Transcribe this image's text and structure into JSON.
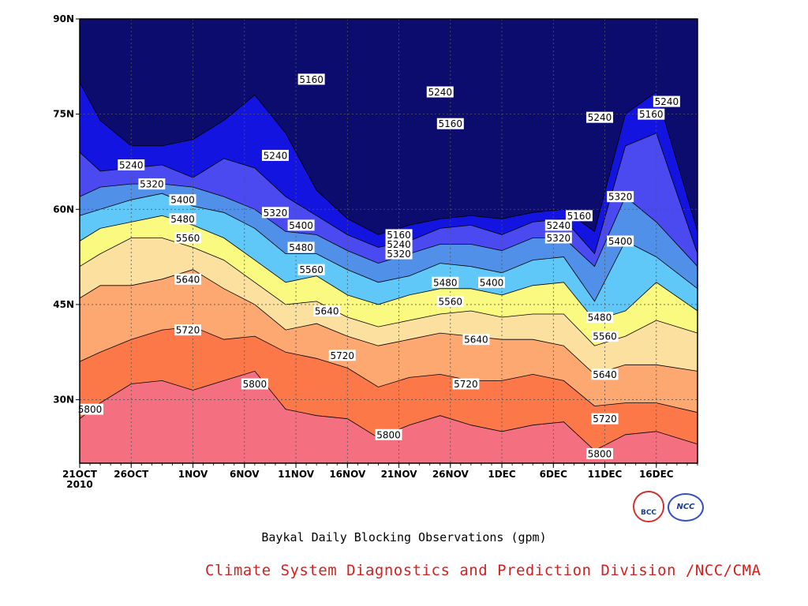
{
  "chart_data": {
    "type": "area",
    "title": "Baykal Daily Blocking Observations (gpm)",
    "subtitle": "Climate System Diagnostics and Prediction Division /NCC/CMA",
    "xlabel": "",
    "ylabel": "",
    "x_ticks": [
      "21OCT\n2010",
      "26OCT",
      "1NOV",
      "6NOV",
      "11NOV",
      "16NOV",
      "21NOV",
      "26NOV",
      "1DEC",
      "6DEC",
      "11DEC",
      "16DEC"
    ],
    "x_days": [
      0,
      5,
      11,
      16,
      21,
      26,
      31,
      36,
      41,
      46,
      51,
      56
    ],
    "x_range": [
      0,
      60
    ],
    "y_ticks": [
      "90N",
      "75N",
      "60N",
      "45N",
      "30N"
    ],
    "y_tick_values": [
      90,
      75,
      60,
      45,
      30
    ],
    "y_range": [
      20,
      90
    ],
    "grid": true,
    "contour_levels": [
      5160,
      5240,
      5320,
      5400,
      5480,
      5560,
      5640,
      5720,
      5800
    ],
    "colors": {
      "below_5160": "#0c0c6e",
      "5160_5240": "#1414e0",
      "5240_5320": "#4a4af0",
      "5320_5400": "#5090e8",
      "5400_5480": "#60c8f8",
      "5480_5560": "#fafa80",
      "5560_5640": "#fce0a0",
      "5640_5720": "#fca870",
      "5720_5800": "#fc7848",
      "above_5800": "#f47080"
    },
    "x_days_sample": [
      0,
      2,
      5,
      8,
      11,
      14,
      17,
      20,
      23,
      26,
      29,
      32,
      35,
      38,
      41,
      44,
      47,
      50,
      53,
      56,
      60
    ],
    "isolines": [
      {
        "level": 5800,
        "lat": [
          27.0,
          29.5,
          32.5,
          33.0,
          31.5,
          33.0,
          34.5,
          28.5,
          27.5,
          27.0,
          24.0,
          26.0,
          27.5,
          26.0,
          25.0,
          26.0,
          26.5,
          22.0,
          24.5,
          25.0,
          23.0
        ]
      },
      {
        "level": 5720,
        "lat": [
          36.0,
          37.5,
          39.5,
          41.0,
          41.5,
          39.5,
          40.0,
          37.5,
          36.5,
          35.0,
          32.0,
          33.5,
          34.0,
          33.0,
          33.0,
          34.0,
          33.0,
          29.0,
          29.5,
          29.5,
          28.0
        ]
      },
      {
        "level": 5640,
        "lat": [
          46.0,
          48.0,
          48.0,
          49.0,
          50.5,
          47.5,
          45.0,
          41.0,
          42.0,
          40.0,
          38.5,
          39.5,
          40.5,
          40.0,
          39.5,
          39.5,
          38.5,
          34.0,
          35.5,
          35.5,
          34.5
        ]
      },
      {
        "level": 5560,
        "lat": [
          51.0,
          53.0,
          55.5,
          55.5,
          54.0,
          52.0,
          48.5,
          45.0,
          45.5,
          43.0,
          41.5,
          42.5,
          43.5,
          44.0,
          43.0,
          43.5,
          43.5,
          38.5,
          40.0,
          42.5,
          40.5
        ]
      },
      {
        "level": 5480,
        "lat": [
          55.0,
          57.0,
          58.0,
          59.0,
          57.5,
          55.5,
          52.0,
          48.5,
          49.5,
          46.5,
          45.0,
          46.5,
          47.5,
          47.5,
          46.5,
          48.0,
          48.5,
          42.5,
          44.0,
          48.5,
          44.0
        ]
      },
      {
        "level": 5400,
        "lat": [
          59.0,
          60.0,
          61.5,
          62.5,
          60.5,
          59.5,
          57.0,
          53.0,
          53.0,
          50.5,
          48.5,
          49.5,
          51.5,
          51.0,
          50.0,
          52.0,
          52.5,
          45.5,
          55.0,
          52.5,
          47.5
        ]
      },
      {
        "level": 5320,
        "lat": [
          62.0,
          63.5,
          64.0,
          64.0,
          63.5,
          62.0,
          60.0,
          56.5,
          56.0,
          53.5,
          51.5,
          53.0,
          54.5,
          54.5,
          53.5,
          55.5,
          55.5,
          51.0,
          62.0,
          58.0,
          51.0
        ]
      },
      {
        "level": 5240,
        "lat": [
          69.0,
          66.0,
          66.5,
          67.0,
          65.0,
          68.0,
          66.5,
          62.0,
          59.0,
          56.0,
          54.0,
          55.0,
          57.0,
          57.5,
          56.0,
          58.0,
          58.5,
          53.0,
          70.0,
          72.0,
          53.0
        ]
      },
      {
        "level": 5160,
        "lat": [
          80.0,
          74.0,
          70.0,
          70.0,
          71.0,
          74.0,
          78.0,
          72.0,
          63.0,
          58.5,
          56.0,
          57.5,
          58.5,
          59.0,
          58.5,
          59.5,
          60.0,
          56.5,
          75.0,
          78.5,
          56.5
        ]
      }
    ],
    "labels": [
      {
        "text": "5800",
        "day": 1.0,
        "lat": 28.5
      },
      {
        "text": "5800",
        "day": 17.0,
        "lat": 32.5
      },
      {
        "text": "5800",
        "day": 30.0,
        "lat": 24.5
      },
      {
        "text": "5800",
        "day": 50.5,
        "lat": 21.5
      },
      {
        "text": "5720",
        "day": 10.5,
        "lat": 41.0
      },
      {
        "text": "5720",
        "day": 25.5,
        "lat": 37.0
      },
      {
        "text": "5720",
        "day": 37.5,
        "lat": 32.5
      },
      {
        "text": "5720",
        "day": 51.0,
        "lat": 27.0
      },
      {
        "text": "5640",
        "day": 10.5,
        "lat": 49.0
      },
      {
        "text": "5640",
        "day": 24.0,
        "lat": 44.0
      },
      {
        "text": "5640",
        "day": 38.5,
        "lat": 39.5
      },
      {
        "text": "5640",
        "day": 51.0,
        "lat": 34.0
      },
      {
        "text": "5560",
        "day": 10.5,
        "lat": 55.5
      },
      {
        "text": "5560",
        "day": 22.5,
        "lat": 50.5
      },
      {
        "text": "5560",
        "day": 36.0,
        "lat": 45.5
      },
      {
        "text": "5560",
        "day": 51.0,
        "lat": 40.0
      },
      {
        "text": "5480",
        "day": 10.0,
        "lat": 58.5
      },
      {
        "text": "5480",
        "day": 21.5,
        "lat": 54.0
      },
      {
        "text": "5480",
        "day": 35.5,
        "lat": 48.5
      },
      {
        "text": "5480",
        "day": 50.5,
        "lat": 43.0
      },
      {
        "text": "5400",
        "day": 10.0,
        "lat": 61.5
      },
      {
        "text": "5400",
        "day": 21.5,
        "lat": 57.5
      },
      {
        "text": "5400",
        "day": 40.0,
        "lat": 48.5
      },
      {
        "text": "5400",
        "day": 52.5,
        "lat": 55.0
      },
      {
        "text": "5320",
        "day": 7.0,
        "lat": 64.0
      },
      {
        "text": "5320",
        "day": 19.0,
        "lat": 59.5
      },
      {
        "text": "5320",
        "day": 31.0,
        "lat": 53.0
      },
      {
        "text": "5320",
        "day": 46.5,
        "lat": 55.5
      },
      {
        "text": "5320",
        "day": 52.5,
        "lat": 62.0
      },
      {
        "text": "5240",
        "day": 5.0,
        "lat": 67.0
      },
      {
        "text": "5240",
        "day": 19.0,
        "lat": 68.5
      },
      {
        "text": "5240",
        "day": 31.0,
        "lat": 54.5
      },
      {
        "text": "5240",
        "day": 46.5,
        "lat": 57.5
      },
      {
        "text": "5240",
        "day": 35.0,
        "lat": 78.5
      },
      {
        "text": "5240",
        "day": 50.5,
        "lat": 74.5
      },
      {
        "text": "5240",
        "day": 57.0,
        "lat": 77.0
      },
      {
        "text": "5160",
        "day": 22.5,
        "lat": 80.5
      },
      {
        "text": "5160",
        "day": 31.0,
        "lat": 56.0
      },
      {
        "text": "5160",
        "day": 36.0,
        "lat": 73.5
      },
      {
        "text": "5160",
        "day": 48.5,
        "lat": 59.0
      },
      {
        "text": "5160",
        "day": 55.5,
        "lat": 75.0
      }
    ]
  },
  "logos": {
    "bcc": "BCC",
    "ncc": "NCC"
  }
}
